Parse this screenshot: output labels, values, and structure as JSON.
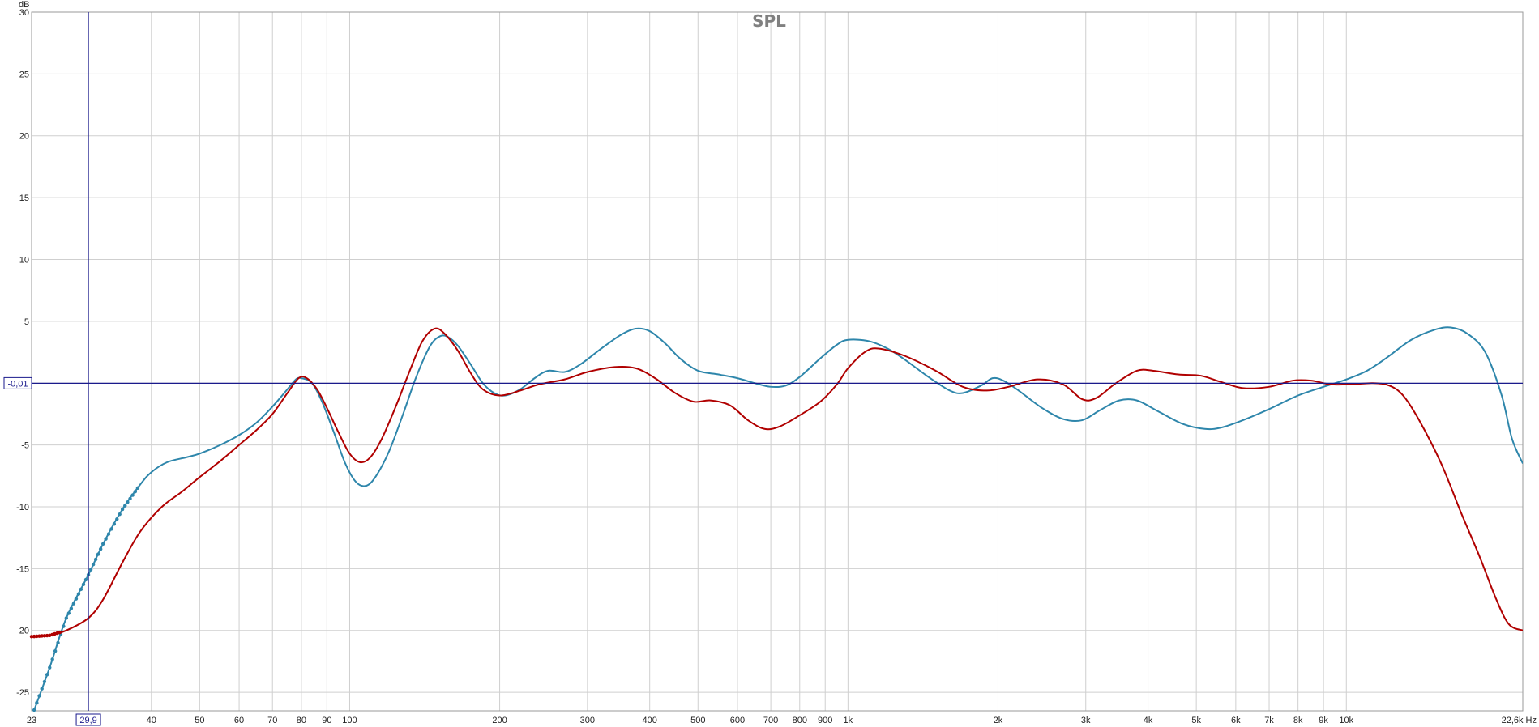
{
  "chart_data": {
    "type": "line",
    "title": "SPL",
    "ylabel": "dB",
    "xunit": "Hz",
    "x_scale": "log",
    "xlim": [
      23,
      22600
    ],
    "ylim": [
      -26.5,
      30
    ],
    "grid": true,
    "x_ticks": [
      {
        "value": 23,
        "label": "23"
      },
      {
        "value": 40,
        "label": "40"
      },
      {
        "value": 50,
        "label": "50"
      },
      {
        "value": 60,
        "label": "60"
      },
      {
        "value": 70,
        "label": "70"
      },
      {
        "value": 80,
        "label": "80"
      },
      {
        "value": 90,
        "label": "90"
      },
      {
        "value": 100,
        "label": "100"
      },
      {
        "value": 200,
        "label": "200"
      },
      {
        "value": 300,
        "label": "300"
      },
      {
        "value": 400,
        "label": "400"
      },
      {
        "value": 500,
        "label": "500"
      },
      {
        "value": 600,
        "label": "600"
      },
      {
        "value": 700,
        "label": "700"
      },
      {
        "value": 800,
        "label": "800"
      },
      {
        "value": 900,
        "label": "900"
      },
      {
        "value": 1000,
        "label": "1k"
      },
      {
        "value": 2000,
        "label": "2k"
      },
      {
        "value": 3000,
        "label": "3k"
      },
      {
        "value": 4000,
        "label": "4k"
      },
      {
        "value": 5000,
        "label": "5k"
      },
      {
        "value": 6000,
        "label": "6k"
      },
      {
        "value": 7000,
        "label": "7k"
      },
      {
        "value": 8000,
        "label": "8k"
      },
      {
        "value": 9000,
        "label": "9k"
      },
      {
        "value": 10000,
        "label": "10k"
      },
      {
        "value": 22600,
        "label": "22,6k Hz"
      }
    ],
    "y_ticks": [
      30,
      25,
      20,
      15,
      10,
      5,
      0,
      -5,
      -10,
      -15,
      -20,
      -25
    ],
    "y_tick_labels": [
      "30",
      "25",
      "20",
      "15",
      "10",
      "5",
      "",
      "-5",
      "-10",
      "-15",
      "-20",
      "-25"
    ],
    "cursor": {
      "x": 29.9,
      "x_label": "29,9",
      "y": -0.01,
      "y_label": "-0,01",
      "color": "#1a1a8c"
    },
    "series": [
      {
        "color": "#2e86ab",
        "points": [
          [
            23,
            -27.0
          ],
          [
            25,
            -23
          ],
          [
            27,
            -19
          ],
          [
            29.9,
            -15.5
          ],
          [
            32,
            -13
          ],
          [
            35,
            -10.2
          ],
          [
            38,
            -8.2
          ],
          [
            40,
            -7.2
          ],
          [
            43,
            -6.4
          ],
          [
            47,
            -6.0
          ],
          [
            50,
            -5.7
          ],
          [
            55,
            -5.0
          ],
          [
            60,
            -4.2
          ],
          [
            65,
            -3.2
          ],
          [
            70,
            -1.9
          ],
          [
            75,
            -0.5
          ],
          [
            78,
            0.3
          ],
          [
            80,
            0.4
          ],
          [
            84,
            0.0
          ],
          [
            88,
            -1.5
          ],
          [
            93,
            -4.0
          ],
          [
            98,
            -6.5
          ],
          [
            103,
            -8.0
          ],
          [
            108,
            -8.3
          ],
          [
            113,
            -7.5
          ],
          [
            120,
            -5.5
          ],
          [
            128,
            -2.5
          ],
          [
            136,
            0.5
          ],
          [
            145,
            3.0
          ],
          [
            152,
            3.8
          ],
          [
            158,
            3.7
          ],
          [
            165,
            3.0
          ],
          [
            175,
            1.5
          ],
          [
            185,
            0.0
          ],
          [
            195,
            -0.8
          ],
          [
            205,
            -1.0
          ],
          [
            220,
            -0.5
          ],
          [
            235,
            0.4
          ],
          [
            250,
            1.0
          ],
          [
            270,
            0.9
          ],
          [
            290,
            1.5
          ],
          [
            320,
            2.8
          ],
          [
            350,
            3.9
          ],
          [
            375,
            4.4
          ],
          [
            400,
            4.2
          ],
          [
            430,
            3.2
          ],
          [
            460,
            2.0
          ],
          [
            500,
            1.0
          ],
          [
            550,
            0.7
          ],
          [
            600,
            0.4
          ],
          [
            650,
            0.0
          ],
          [
            700,
            -0.3
          ],
          [
            750,
            -0.2
          ],
          [
            800,
            0.5
          ],
          [
            880,
            2.0
          ],
          [
            950,
            3.1
          ],
          [
            1000,
            3.5
          ],
          [
            1100,
            3.4
          ],
          [
            1200,
            2.8
          ],
          [
            1300,
            1.9
          ],
          [
            1450,
            0.5
          ],
          [
            1600,
            -0.6
          ],
          [
            1700,
            -0.8
          ],
          [
            1850,
            -0.2
          ],
          [
            1950,
            0.4
          ],
          [
            2050,
            0.2
          ],
          [
            2200,
            -0.6
          ],
          [
            2450,
            -2.0
          ],
          [
            2700,
            -2.9
          ],
          [
            2950,
            -3.0
          ],
          [
            3200,
            -2.2
          ],
          [
            3500,
            -1.4
          ],
          [
            3800,
            -1.4
          ],
          [
            4200,
            -2.3
          ],
          [
            4700,
            -3.3
          ],
          [
            5200,
            -3.7
          ],
          [
            5600,
            -3.6
          ],
          [
            6200,
            -3.0
          ],
          [
            7000,
            -2.1
          ],
          [
            8000,
            -1.0
          ],
          [
            9000,
            -0.3
          ],
          [
            10000,
            0.3
          ],
          [
            11000,
            1.0
          ],
          [
            12000,
            2.0
          ],
          [
            13500,
            3.5
          ],
          [
            15000,
            4.3
          ],
          [
            16200,
            4.5
          ],
          [
            17500,
            4.0
          ],
          [
            19000,
            2.5
          ],
          [
            20500,
            -1.0
          ],
          [
            21500,
            -4.5
          ],
          [
            22600,
            -6.5
          ]
        ],
        "dotted_until": 38
      },
      {
        "color": "#b00000",
        "points": [
          [
            23,
            -20.5
          ],
          [
            25,
            -20.4
          ],
          [
            27,
            -20.0
          ],
          [
            29.9,
            -19.0
          ],
          [
            32,
            -17.5
          ],
          [
            35,
            -14.5
          ],
          [
            38,
            -12.0
          ],
          [
            42,
            -10.0
          ],
          [
            46,
            -8.8
          ],
          [
            50,
            -7.6
          ],
          [
            55,
            -6.3
          ],
          [
            60,
            -5.0
          ],
          [
            65,
            -3.8
          ],
          [
            70,
            -2.5
          ],
          [
            75,
            -0.8
          ],
          [
            79,
            0.4
          ],
          [
            82,
            0.4
          ],
          [
            86,
            -0.5
          ],
          [
            90,
            -2.0
          ],
          [
            95,
            -4.0
          ],
          [
            100,
            -5.7
          ],
          [
            105,
            -6.4
          ],
          [
            110,
            -6.0
          ],
          [
            116,
            -4.5
          ],
          [
            124,
            -1.8
          ],
          [
            132,
            1.0
          ],
          [
            140,
            3.4
          ],
          [
            148,
            4.4
          ],
          [
            155,
            4.0
          ],
          [
            165,
            2.6
          ],
          [
            175,
            0.8
          ],
          [
            185,
            -0.5
          ],
          [
            200,
            -1.0
          ],
          [
            220,
            -0.6
          ],
          [
            240,
            -0.1
          ],
          [
            270,
            0.3
          ],
          [
            300,
            0.9
          ],
          [
            340,
            1.3
          ],
          [
            375,
            1.2
          ],
          [
            410,
            0.4
          ],
          [
            450,
            -0.8
          ],
          [
            490,
            -1.5
          ],
          [
            530,
            -1.4
          ],
          [
            580,
            -1.8
          ],
          [
            630,
            -3.0
          ],
          [
            680,
            -3.7
          ],
          [
            730,
            -3.5
          ],
          [
            800,
            -2.6
          ],
          [
            880,
            -1.5
          ],
          [
            950,
            -0.1
          ],
          [
            1000,
            1.2
          ],
          [
            1080,
            2.5
          ],
          [
            1150,
            2.8
          ],
          [
            1300,
            2.2
          ],
          [
            1500,
            1.0
          ],
          [
            1700,
            -0.3
          ],
          [
            1900,
            -0.6
          ],
          [
            2100,
            -0.3
          ],
          [
            2400,
            0.3
          ],
          [
            2700,
            -0.1
          ],
          [
            2950,
            -1.3
          ],
          [
            3150,
            -1.2
          ],
          [
            3450,
            0.0
          ],
          [
            3800,
            1.0
          ],
          [
            4100,
            1.0
          ],
          [
            4600,
            0.7
          ],
          [
            5100,
            0.6
          ],
          [
            5600,
            0.1
          ],
          [
            6200,
            -0.4
          ],
          [
            7000,
            -0.3
          ],
          [
            7800,
            0.2
          ],
          [
            8500,
            0.2
          ],
          [
            9300,
            -0.1
          ],
          [
            10200,
            -0.1
          ],
          [
            11300,
            0.0
          ],
          [
            12200,
            -0.2
          ],
          [
            13000,
            -1.0
          ],
          [
            14000,
            -3.0
          ],
          [
            15500,
            -6.5
          ],
          [
            17000,
            -10.5
          ],
          [
            18500,
            -14.0
          ],
          [
            20000,
            -17.5
          ],
          [
            21200,
            -19.5
          ],
          [
            22600,
            -20.0
          ]
        ],
        "dotted_until": 26.5
      }
    ]
  }
}
